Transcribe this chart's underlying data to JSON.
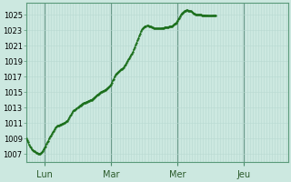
{
  "title": "",
  "bg_color": "#cce8e0",
  "plot_bg_color": "#cce8e0",
  "grid_color_minor": "#b8d8d0",
  "grid_color_major_x": "#6a9a8a",
  "grid_color_major_y": "#b8d8d0",
  "line_color": "#1a6e1a",
  "marker_color": "#1a6e1a",
  "ylim": [
    1006.0,
    1026.5
  ],
  "yticks": [
    1007,
    1009,
    1011,
    1013,
    1015,
    1017,
    1019,
    1021,
    1023,
    1025
  ],
  "day_labels": [
    "Lun",
    "Mar",
    "Mer",
    "Jeu"
  ],
  "xlim": [
    0,
    284
  ],
  "day_positions": [
    20,
    92,
    164,
    236
  ],
  "pressure_data": [
    1009.0,
    1008.8,
    1008.5,
    1008.2,
    1008.0,
    1007.8,
    1007.6,
    1007.5,
    1007.4,
    1007.3,
    1007.2,
    1007.15,
    1007.1,
    1007.05,
    1007.0,
    1007.05,
    1007.1,
    1007.2,
    1007.4,
    1007.6,
    1007.8,
    1008.0,
    1008.3,
    1008.5,
    1008.7,
    1009.0,
    1009.2,
    1009.4,
    1009.6,
    1009.8,
    1010.0,
    1010.2,
    1010.4,
    1010.5,
    1010.6,
    1010.65,
    1010.7,
    1010.75,
    1010.8,
    1010.85,
    1010.9,
    1010.95,
    1011.0,
    1011.1,
    1011.2,
    1011.3,
    1011.5,
    1011.7,
    1011.9,
    1012.1,
    1012.3,
    1012.5,
    1012.6,
    1012.7,
    1012.8,
    1012.9,
    1013.0,
    1013.1,
    1013.2,
    1013.3,
    1013.4,
    1013.5,
    1013.55,
    1013.6,
    1013.65,
    1013.7,
    1013.75,
    1013.8,
    1013.85,
    1013.9,
    1013.95,
    1014.0,
    1014.1,
    1014.2,
    1014.3,
    1014.4,
    1014.5,
    1014.6,
    1014.7,
    1014.8,
    1014.9,
    1015.0,
    1015.05,
    1015.1,
    1015.15,
    1015.2,
    1015.3,
    1015.4,
    1015.5,
    1015.6,
    1015.7,
    1015.8,
    1016.0,
    1016.2,
    1016.5,
    1016.7,
    1017.0,
    1017.2,
    1017.4,
    1017.5,
    1017.6,
    1017.7,
    1017.8,
    1017.9,
    1018.0,
    1018.1,
    1018.2,
    1018.4,
    1018.6,
    1018.8,
    1019.0,
    1019.2,
    1019.4,
    1019.6,
    1019.8,
    1020.0,
    1020.2,
    1020.5,
    1020.8,
    1021.1,
    1021.4,
    1021.7,
    1022.0,
    1022.3,
    1022.6,
    1022.9,
    1023.1,
    1023.3,
    1023.4,
    1023.5,
    1023.55,
    1023.6,
    1023.6,
    1023.55,
    1023.5,
    1023.5,
    1023.4,
    1023.35,
    1023.3,
    1023.25,
    1023.2,
    1023.2,
    1023.2,
    1023.2,
    1023.2,
    1023.2,
    1023.2,
    1023.25,
    1023.3,
    1023.3,
    1023.35,
    1023.4,
    1023.4,
    1023.4,
    1023.4,
    1023.45,
    1023.5,
    1023.5,
    1023.55,
    1023.6,
    1023.7,
    1023.8,
    1023.9,
    1024.0,
    1024.2,
    1024.4,
    1024.6,
    1024.8,
    1025.0,
    1025.2,
    1025.3,
    1025.4,
    1025.5,
    1025.55,
    1025.6,
    1025.6,
    1025.55,
    1025.5,
    1025.5,
    1025.45,
    1025.4,
    1025.3,
    1025.2,
    1025.1,
    1025.0,
    1025.0,
    1025.0,
    1025.0,
    1025.0,
    1025.0,
    1025.0,
    1024.95,
    1024.95,
    1024.95,
    1024.95,
    1024.9,
    1024.9,
    1024.9,
    1024.85,
    1024.85,
    1024.85,
    1024.85,
    1024.85,
    1024.9,
    1024.9,
    1024.9,
    1024.9
  ]
}
